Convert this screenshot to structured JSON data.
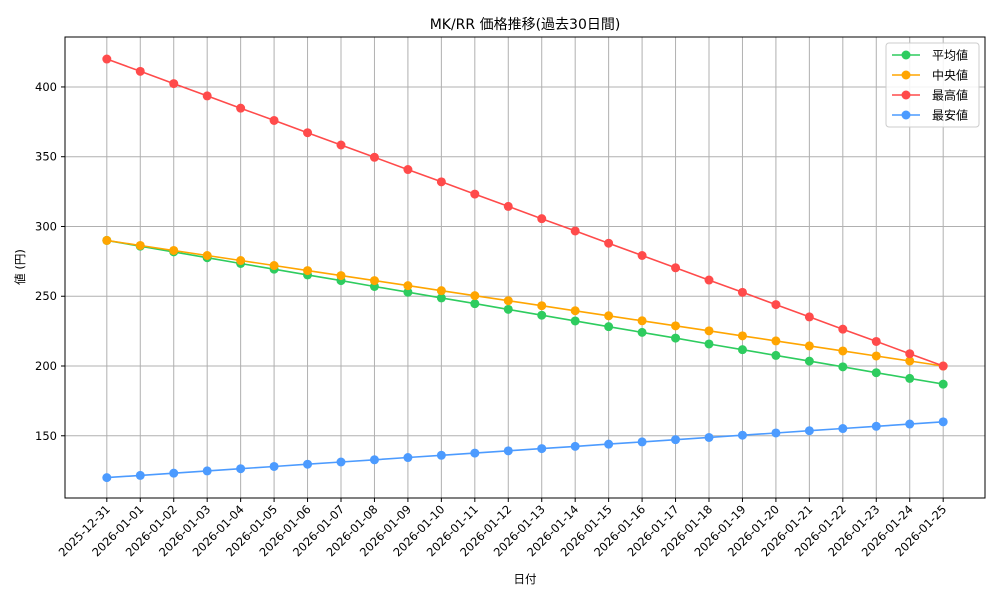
{
  "chart_data": {
    "type": "line",
    "title": "MK/RR 価格推移(過去30日間)",
    "xlabel": "日付",
    "ylabel": "値 (円)",
    "categories": [
      "2025-12-31",
      "2026-01-01",
      "2026-01-02",
      "2026-01-03",
      "2026-01-04",
      "2026-01-05",
      "2026-01-06",
      "2026-01-07",
      "2026-01-08",
      "2026-01-09",
      "2026-01-10",
      "2026-01-11",
      "2026-01-12",
      "2026-01-13",
      "2026-01-14",
      "2026-01-15",
      "2026-01-16",
      "2026-01-17",
      "2026-01-18",
      "2026-01-19",
      "2026-01-20",
      "2026-01-21",
      "2026-01-22",
      "2026-01-23",
      "2026-01-24",
      "2026-01-25"
    ],
    "series": [
      {
        "name": "平均値",
        "color": "#2ecc5f",
        "values": [
          290.0,
          285.9,
          281.8,
          277.6,
          273.5,
          269.4,
          265.3,
          261.2,
          257.0,
          252.9,
          248.8,
          244.7,
          240.6,
          236.4,
          232.3,
          228.2,
          224.1,
          220.0,
          215.8,
          211.7,
          207.6,
          203.5,
          199.4,
          195.2,
          191.1,
          187.0
        ]
      },
      {
        "name": "中央値",
        "color": "#ffa500",
        "values": [
          290.0,
          286.4,
          282.8,
          279.2,
          275.6,
          272.0,
          268.4,
          264.8,
          261.2,
          257.6,
          254.0,
          250.4,
          246.8,
          243.2,
          239.6,
          236.0,
          232.4,
          228.8,
          225.2,
          221.6,
          218.0,
          214.4,
          210.8,
          207.2,
          203.6,
          200.0
        ]
      },
      {
        "name": "最高値",
        "color": "#ff4b4b",
        "values": [
          420.0,
          411.2,
          402.4,
          393.6,
          384.8,
          376.0,
          367.2,
          358.4,
          349.6,
          340.8,
          332.0,
          323.2,
          314.4,
          305.6,
          296.8,
          288.0,
          279.2,
          270.4,
          261.6,
          252.8,
          244.0,
          235.2,
          226.4,
          217.6,
          208.8,
          200.0
        ]
      },
      {
        "name": "最安値",
        "color": "#4c9bff",
        "values": [
          120.0,
          121.6,
          123.2,
          124.8,
          126.4,
          128.0,
          129.6,
          131.2,
          132.8,
          134.4,
          136.0,
          137.6,
          139.2,
          140.8,
          142.4,
          144.0,
          145.6,
          147.2,
          148.8,
          150.4,
          152.0,
          153.6,
          155.2,
          156.8,
          158.4,
          160.0
        ]
      }
    ],
    "yticks": [
      150,
      200,
      250,
      300,
      350,
      400
    ],
    "ylim": [
      105.4,
      435.8
    ],
    "xlim": [
      -1.25,
      26.25
    ],
    "grid": true,
    "legend_position": "upper right"
  }
}
